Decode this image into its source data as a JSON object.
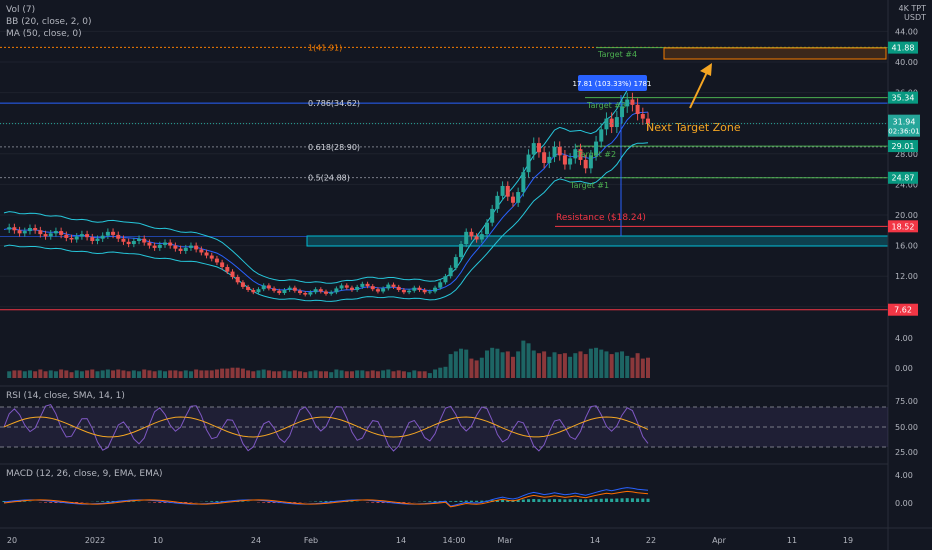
{
  "header": {
    "unit_top": "4K TPT",
    "unit": "USDT",
    "indicators": [
      "Vol (7)",
      "BB (20, close, 2, 0)",
      "MA (50, close, 0)"
    ]
  },
  "rsi": {
    "legend": "RSI (14, close, SMA, 14, 1)",
    "ticks": [
      "75.00",
      "50.00",
      "25.00"
    ]
  },
  "macd": {
    "legend": "MACD (12, 26, close, 9, EMA, EMA)",
    "ticks": [
      "4.00",
      "0.00"
    ]
  },
  "chart_data": {
    "type": "candlestick",
    "title": "",
    "y_ticks": [
      44,
      40,
      36,
      32,
      28,
      24,
      20,
      16,
      12,
      8
    ],
    "volume_ticks": [
      "4.00",
      "0.00"
    ],
    "x_ticks": [
      "20",
      "2022",
      "10",
      "24",
      "Feb",
      "14",
      "14:00",
      "Mar",
      "14",
      "22",
      "Apr",
      "11",
      "19"
    ],
    "fib_levels": [
      {
        "label": "1(41.91)",
        "value": 41.91,
        "color": "#f57c00"
      },
      {
        "label": "0.786(34.62)",
        "value": 34.62,
        "color": "#2962ff"
      },
      {
        "label": "0.618(28.90)",
        "value": 28.9,
        "color": "#787b86"
      },
      {
        "label": "0.5(24.88)",
        "value": 24.88,
        "color": "#787b86"
      }
    ],
    "targets": [
      {
        "label": "Target #4",
        "value": 41.88
      },
      {
        "label": "Target #3",
        "value": 35.34
      },
      {
        "label": "Target #2",
        "value": 29.01
      },
      {
        "label": "Target #1",
        "value": 24.87
      }
    ],
    "price_badges": [
      {
        "text": "41.88",
        "value": 41.88,
        "color": "#089981"
      },
      {
        "text": "35.34",
        "value": 35.34,
        "color": "#089981"
      },
      {
        "text": "29.01",
        "value": 29.01,
        "color": "#089981"
      },
      {
        "text": "24.87",
        "value": 24.87,
        "color": "#089981"
      },
      {
        "text": "18.52",
        "value": 18.52,
        "color": "#f23645"
      },
      {
        "text": "7.62",
        "value": 7.62,
        "color": "#f23645"
      }
    ],
    "current_price": {
      "value": 31.94,
      "text": "31.94",
      "countdown": "02:36:01"
    },
    "annotations": {
      "next_target": "Next Target Zone",
      "resistance": "Resistance ($18.24)",
      "measure": "17.81 (103.33%) 1781"
    },
    "rsi_levels": [
      70,
      50,
      30
    ],
    "close": [
      18.1,
      18.4,
      18.0,
      17.6,
      17.9,
      18.3,
      18.0,
      17.5,
      17.2,
      17.6,
      17.9,
      17.4,
      17.0,
      16.8,
      17.2,
      17.5,
      17.1,
      16.6,
      16.9,
      17.3,
      17.8,
      17.4,
      16.9,
      16.5,
      16.2,
      16.6,
      16.9,
      16.4,
      16.0,
      15.7,
      16.1,
      16.4,
      16.0,
      15.6,
      15.3,
      15.7,
      16.0,
      15.5,
      15.1,
      14.7,
      14.3,
      13.8,
      13.2,
      12.6,
      11.9,
      11.2,
      10.6,
      10.2,
      9.9,
      10.3,
      10.8,
      10.4,
      10.1,
      9.8,
      10.2,
      10.5,
      10.1,
      9.8,
      9.6,
      9.9,
      10.3,
      10.0,
      9.7,
      9.9,
      10.4,
      10.8,
      10.5,
      10.2,
      10.6,
      11.0,
      10.7,
      10.3,
      10.0,
      10.4,
      10.9,
      10.6,
      10.2,
      9.9,
      10.1,
      10.5,
      10.2,
      9.9,
      10.0,
      10.5,
      11.2,
      12.0,
      13.1,
      14.5,
      16.2,
      17.8,
      17.2,
      16.8,
      17.5,
      19.0,
      20.8,
      22.5,
      23.8,
      22.4,
      21.6,
      23.0,
      25.6,
      27.9,
      29.4,
      28.2,
      26.8,
      27.6,
      28.9,
      27.8,
      26.6,
      27.4,
      28.6,
      27.2,
      26.1,
      27.8,
      29.6,
      31.2,
      32.6,
      31.5,
      32.8,
      34.2,
      35.1,
      34.4,
      33.2,
      32.6,
      31.9
    ]
  }
}
